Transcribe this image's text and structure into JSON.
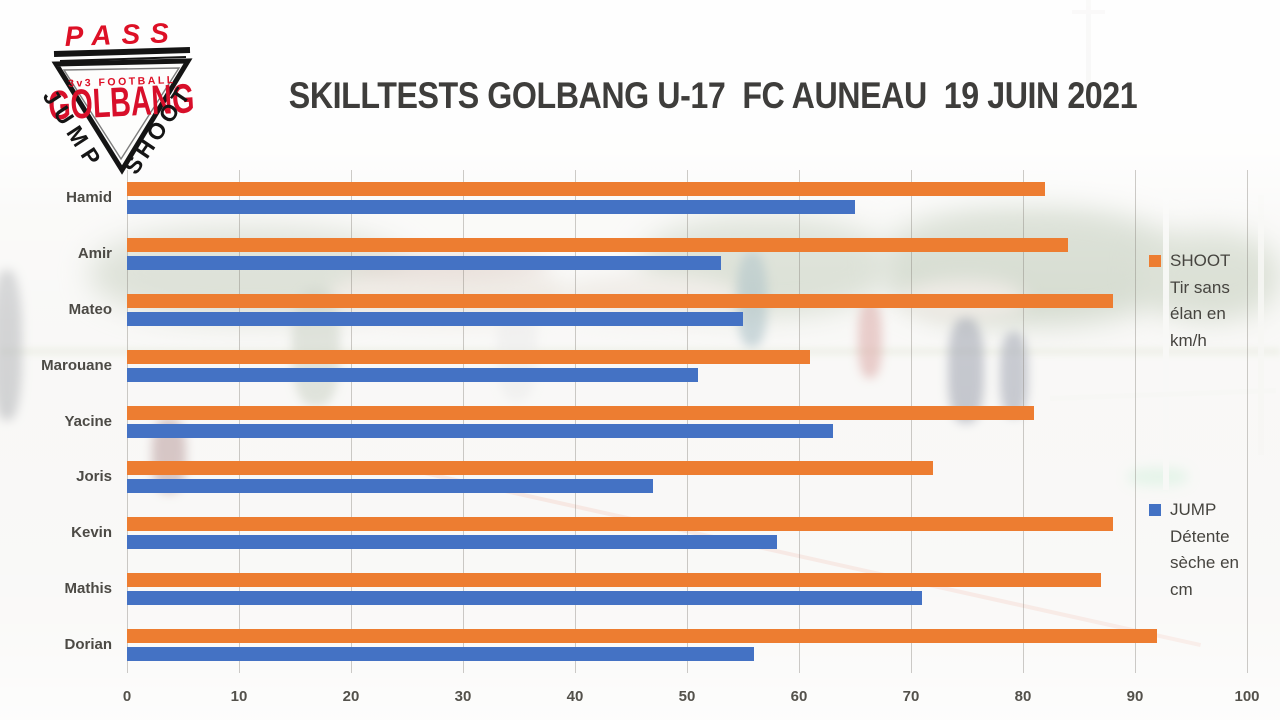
{
  "title": "SKILLTESTS GOLBANG U-17  FC AUNEAU  19 JUIN 2021",
  "logo": {
    "pass": "PASS",
    "sub": "3v3 FOOTBALL",
    "brand": "GOLBANG",
    "jump": "JUMP",
    "shoot": "SHOOT",
    "red": "#dd1026",
    "black": "#141414"
  },
  "chart_data": {
    "type": "bar",
    "orientation": "horizontal",
    "title": "SKILLTESTS GOLBANG U-17  FC AUNEAU  19 JUIN 2021",
    "categories": [
      "Hamid",
      "Amir",
      "Mateo",
      "Marouane",
      "Yacine",
      "Joris",
      "Kevin",
      "Mathis",
      "Dorian"
    ],
    "series": [
      {
        "name": "SHOOT Tir sans élan en km/h",
        "color": "#ED7D31",
        "values": [
          82,
          84,
          88,
          61,
          81,
          72,
          88,
          87,
          92
        ]
      },
      {
        "name": "JUMP Détente sèche en cm",
        "color": "#4472C4",
        "values": [
          65,
          53,
          55,
          51,
          63,
          47,
          58,
          71,
          56
        ]
      }
    ],
    "xlim": [
      0,
      100
    ],
    "xticks": [
      0,
      10,
      20,
      30,
      40,
      50,
      60,
      70,
      80,
      90,
      100
    ],
    "grid": true,
    "legend_position": "right"
  },
  "legend": [
    {
      "color": "#ED7D31",
      "label_lines": [
        "SHOOT",
        "Tir sans",
        "élan en",
        "km/h"
      ]
    },
    {
      "color": "#4472C4",
      "label_lines": [
        "JUMP",
        "Détente",
        "sèche en",
        "cm"
      ]
    }
  ]
}
